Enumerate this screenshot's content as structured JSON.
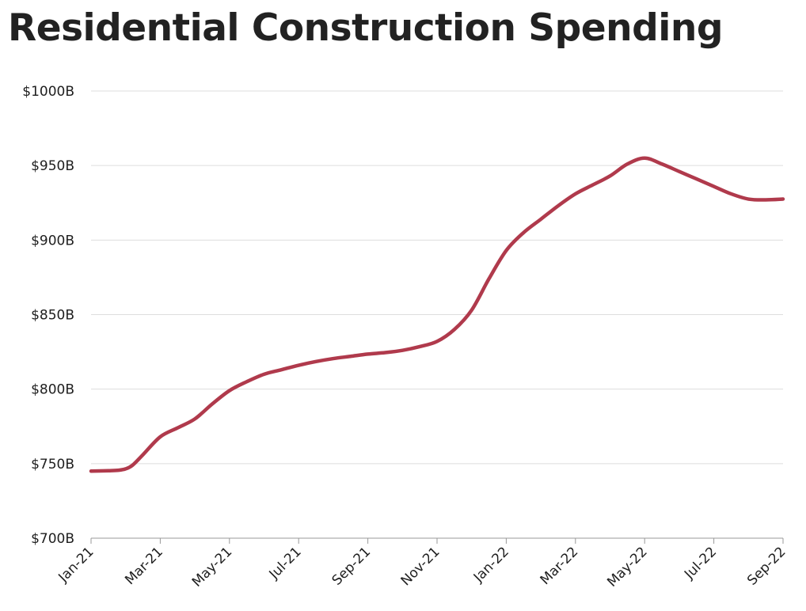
{
  "chart_data": {
    "type": "line",
    "title": "Residential Construction Spending",
    "xlabel": "",
    "ylabel": "",
    "ylim": [
      700,
      1000
    ],
    "y_ticks": [
      700,
      750,
      800,
      850,
      900,
      950,
      1000
    ],
    "y_tick_labels": [
      "$700B",
      "$750B",
      "$800B",
      "$850B",
      "$900B",
      "$950B",
      "$1000B"
    ],
    "grid": true,
    "line_color": "#b03a4c",
    "grid_color": "#dddddd",
    "axis_color": "#999999",
    "x_tick_labels": [
      "Jan-21",
      "Mar-21",
      "May-21",
      "Jul-21",
      "Sep-21",
      "Nov-21",
      "Jan-22",
      "Mar-22",
      "May-22",
      "Jul-22",
      "Sep-22"
    ],
    "series": [
      {
        "name": "Residential Construction Spending",
        "x": [
          0,
          0.5,
          0.8,
          1.0,
          1.2,
          1.5,
          2.0,
          2.5,
          3.0,
          3.5,
          4.0,
          4.5,
          5.0,
          5.5,
          6.0,
          6.5,
          7.0,
          7.5,
          8.0,
          8.5,
          9.0,
          9.5,
          10.0,
          10.5,
          11.0,
          11.5,
          12.0,
          12.5,
          13.0,
          13.5,
          14.0,
          14.5,
          15.0,
          15.5,
          16.0,
          16.5,
          17.0,
          17.5,
          18.0,
          18.5,
          19.0,
          19.5,
          20.0
        ],
        "values": [
          745,
          745.3,
          745.6,
          746.5,
          749,
          756,
          768,
          774,
          780,
          790,
          799,
          805,
          810,
          813,
          816,
          818.5,
          820.5,
          822,
          823.5,
          824.5,
          826,
          828.5,
          832,
          840,
          853,
          874,
          893,
          905,
          914,
          923,
          931,
          937,
          943,
          951,
          955,
          951,
          946,
          941,
          936,
          931,
          927.5,
          927,
          927.5
        ]
      }
    ]
  }
}
